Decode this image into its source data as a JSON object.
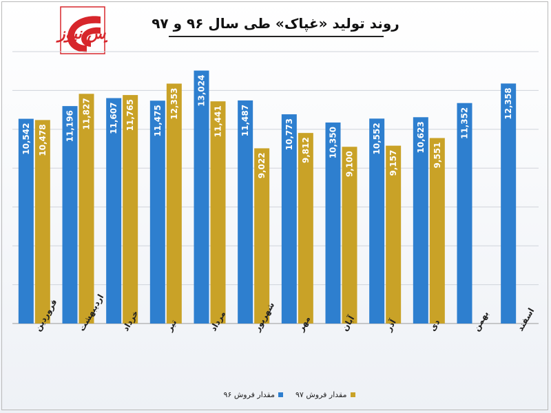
{
  "logo": {
    "text": "بورس نیوز",
    "accent": "#d7262b"
  },
  "chart_data": {
    "type": "bar",
    "title": "روند تولید «غپاک» طی سال ۹۶ و ۹۷",
    "categories": [
      "فروردین",
      "اردیبهشت",
      "خرداد",
      "تیر",
      "مرداد",
      "شهریور",
      "مهر",
      "آبان",
      "آذر",
      "دی",
      "بهمن",
      "اسفند"
    ],
    "series": [
      {
        "name": "مقدار فروش ۹۶",
        "color": "#2e7fcf",
        "values": [
          10542,
          11196,
          11607,
          11475,
          13024,
          11487,
          10773,
          10350,
          10552,
          10623,
          11352,
          12358
        ],
        "labels": [
          "10,542",
          "11,196",
          "11,607",
          "11,475",
          "13,024",
          "11,487",
          "10,773",
          "10,350",
          "10,552",
          "10,623",
          "11,352",
          "12,358"
        ]
      },
      {
        "name": "مقدار فروش ۹۷",
        "color": "#c9a227",
        "values": [
          10478,
          11827,
          11765,
          12353,
          11441,
          9022,
          9812,
          9100,
          9157,
          9551,
          null,
          null
        ],
        "labels": [
          "10,478",
          "11,827",
          "11,765",
          "12,353",
          "11,441",
          "9,022",
          "9,812",
          "9,100",
          "9,157",
          "9,551",
          "",
          ""
        ]
      }
    ],
    "ylim": [
      0,
      14000
    ],
    "grid": true,
    "legend": "bottom"
  }
}
